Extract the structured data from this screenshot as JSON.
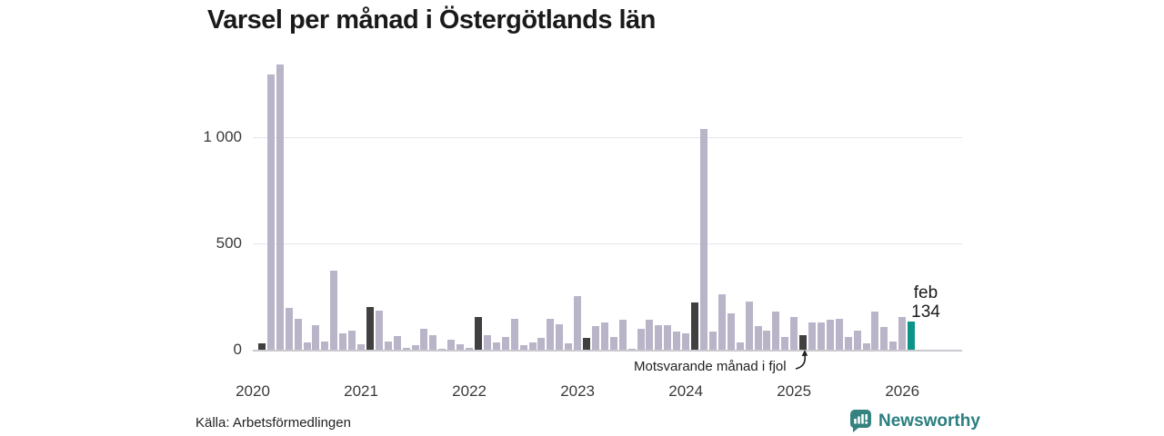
{
  "title": "Varsel per månad i Östergötlands län",
  "source": "Källa: Arbetsförmedlingen",
  "annotation": {
    "text": "Motsvarande månad i fjol"
  },
  "highlight_label": {
    "month": "feb",
    "value": "134"
  },
  "brand": {
    "name": "Newsworthy",
    "color": "#2b7e80"
  },
  "colors": {
    "bar": "#b9b4c7",
    "bar_last_year_month": "#404040",
    "bar_current": "#0d9488",
    "gridline": "#e6e5ec",
    "axis": "#c9c9cf"
  },
  "chart_data": {
    "type": "bar",
    "title": "Varsel per månad i Östergötlands län",
    "xlabel": "",
    "ylabel": "",
    "ylim": [
      0,
      1400
    ],
    "yticks": [
      0,
      500,
      1000
    ],
    "ytick_labels": [
      "0",
      "500",
      "1 000"
    ],
    "xtick_labels": [
      "2020",
      "2021",
      "2022",
      "2023",
      "2024",
      "2025",
      "2026"
    ],
    "grid": "horizontal",
    "legend": "none",
    "note": "dark bars mark February of each year (same month as highlighted); teal bar is current month feb 2026 = 134",
    "months_per_year_start": "jan",
    "values_by_year": {
      "2020": [
        0,
        30,
        1290,
        1340,
        195,
        145,
        35,
        115,
        40,
        370,
        75,
        90
      ],
      "2021": [
        25,
        200,
        185,
        40,
        65,
        10,
        20,
        100,
        70,
        5,
        45,
        25
      ],
      "2022": [
        10,
        155,
        70,
        35,
        60,
        145,
        20,
        35,
        55,
        145,
        120,
        30
      ],
      "2023": [
        250,
        55,
        110,
        130,
        60,
        140,
        5,
        100,
        140,
        115,
        115,
        85
      ],
      "2024": [
        75,
        220,
        1035,
        85,
        260,
        170,
        35,
        225,
        110,
        90,
        180,
        60
      ],
      "2025": [
        155,
        70,
        130,
        130,
        140,
        145,
        60,
        90,
        30,
        180,
        105,
        40
      ],
      "2026": [
        155,
        134
      ]
    },
    "highlight_month_index_in_year": 1,
    "current_point": {
      "year": "2026",
      "month": "feb",
      "value": 134
    }
  }
}
